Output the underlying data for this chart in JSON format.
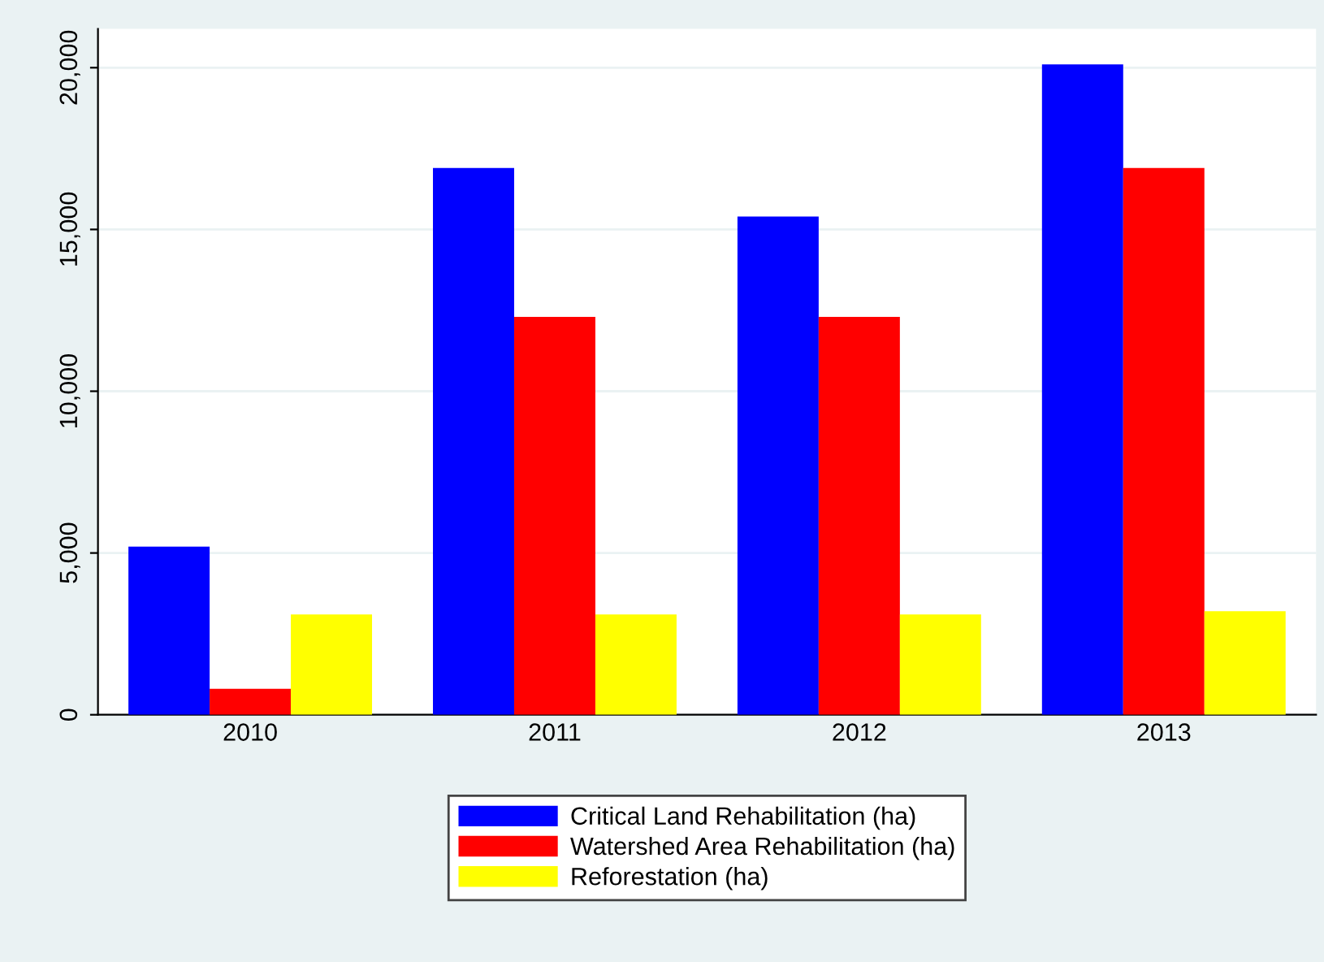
{
  "chart_data": {
    "type": "bar",
    "categories": [
      "2010",
      "2011",
      "2012",
      "2013"
    ],
    "series": [
      {
        "name": "Critical Land Rehabilitation (ha)",
        "color": "#0000ff",
        "values": [
          5200,
          16900,
          15400,
          20100
        ]
      },
      {
        "name": "Watershed Area Rehabilitation (ha)",
        "color": "#ff0000",
        "values": [
          800,
          12300,
          12300,
          16900
        ]
      },
      {
        "name": "Reforestation (ha)",
        "color": "#ffff00",
        "values": [
          3100,
          3100,
          3100,
          3200
        ]
      }
    ],
    "ylim": [
      0,
      21200
    ],
    "yticks": [
      {
        "value": 0,
        "label": "0"
      },
      {
        "value": 5000,
        "label": "5,000"
      },
      {
        "value": 10000,
        "label": "10,000"
      },
      {
        "value": 15000,
        "label": "15,000"
      },
      {
        "value": 20000,
        "label": "20,000"
      }
    ],
    "grid": "y",
    "legend": "bottom"
  }
}
